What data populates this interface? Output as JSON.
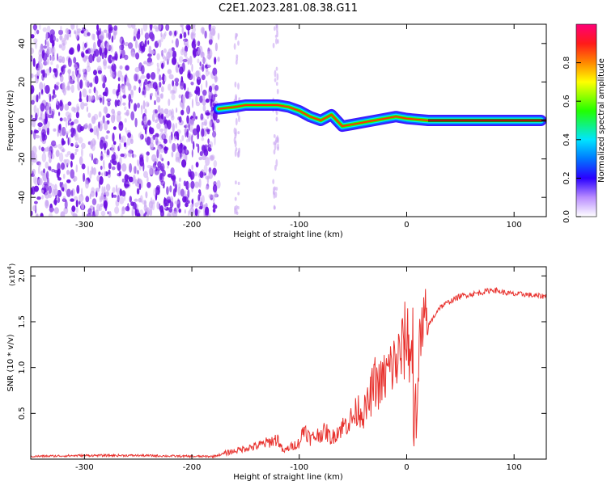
{
  "title": "C2E1.2023.281.08.38.G11",
  "colors": {
    "signal_line": "#e8322e",
    "scatter_purple": "#6a0de0",
    "scatter_light": "#c9a6f2"
  },
  "chart_data": [
    {
      "type": "heatmap",
      "xlabel": "Height of straight line (km)",
      "ylabel": "Frequency (Hz)",
      "xlim": [
        -350,
        130
      ],
      "ylim": [
        -50,
        50
      ],
      "x_ticks": [
        -300,
        -200,
        -100,
        0,
        100
      ],
      "x_tick_labels": [
        "-300",
        "-200",
        "-100",
        "0",
        "100"
      ],
      "y_ticks": [
        -40,
        -20,
        0,
        20,
        40
      ],
      "y_tick_labels": [
        "-40",
        "-20",
        "0",
        "20",
        "40"
      ],
      "noise_region_x": [
        -350,
        -175
      ],
      "ridge": {
        "x": [
          -175,
          -160,
          -150,
          -140,
          -130,
          -120,
          -110,
          -100,
          -90,
          -80,
          -70,
          -60,
          -50,
          -40,
          -30,
          -20,
          -10,
          0,
          20,
          40,
          60,
          80,
          100,
          125
        ],
        "y": [
          6,
          7,
          8,
          8,
          8,
          8,
          7,
          5,
          2,
          0,
          3,
          -3,
          -2,
          -1,
          0,
          1,
          2,
          1,
          0,
          0,
          0,
          0,
          0,
          0
        ]
      },
      "colorbar": {
        "label": "Normalized spectral amplitude",
        "range": [
          0.0,
          1.0
        ],
        "ticks": [
          0.0,
          0.2,
          0.4,
          0.6,
          0.8
        ],
        "tick_labels": [
          "0.0",
          "0.2",
          "0.4",
          "0.6",
          "0.8"
        ]
      }
    },
    {
      "type": "line",
      "xlabel": "Height of straight line (km)",
      "ylabel": "SNR (10 * v/v)",
      "y_multiplier": "(x10",
      "y_multiplier_exp": "4",
      "y_multiplier_close": ")",
      "xlim": [
        -350,
        130
      ],
      "ylim": [
        0,
        2.1
      ],
      "x_ticks": [
        -300,
        -200,
        -100,
        0,
        100
      ],
      "x_tick_labels": [
        "-300",
        "-200",
        "-100",
        "0",
        "100"
      ],
      "y_ticks": [
        0.5,
        1.0,
        1.5,
        2.0
      ],
      "y_tick_labels": [
        "0.5",
        "1.0",
        "1.5",
        "2.0"
      ],
      "series": [
        {
          "x": [
            -350,
            -300,
            -250,
            -200,
            -180,
            -170,
            -160,
            -150,
            -140,
            -130,
            -120,
            -115,
            -110,
            -100,
            -95,
            -90,
            -85,
            -80,
            -75,
            -70,
            -65,
            -60,
            -55,
            -50,
            -45,
            -40,
            -35,
            -30,
            -25,
            -20,
            -15,
            -10,
            -5,
            0,
            5,
            8,
            10,
            12,
            15,
            20,
            25,
            30,
            40,
            50,
            60,
            70,
            80,
            90,
            100,
            110,
            120,
            130
          ],
          "y": [
            0.03,
            0.04,
            0.04,
            0.03,
            0.03,
            0.06,
            0.09,
            0.12,
            0.14,
            0.18,
            0.22,
            0.08,
            0.12,
            0.18,
            0.35,
            0.22,
            0.25,
            0.28,
            0.3,
            0.22,
            0.3,
            0.35,
            0.4,
            0.45,
            0.55,
            0.5,
            0.62,
            0.85,
            0.8,
            0.9,
            1.0,
            1.05,
            1.15,
            1.35,
            1.1,
            0.5,
            1.2,
            1.25,
            1.35,
            1.45,
            1.55,
            1.65,
            1.72,
            1.78,
            1.8,
            1.82,
            1.85,
            1.82,
            1.8,
            1.8,
            1.78,
            1.78
          ]
        }
      ]
    }
  ]
}
